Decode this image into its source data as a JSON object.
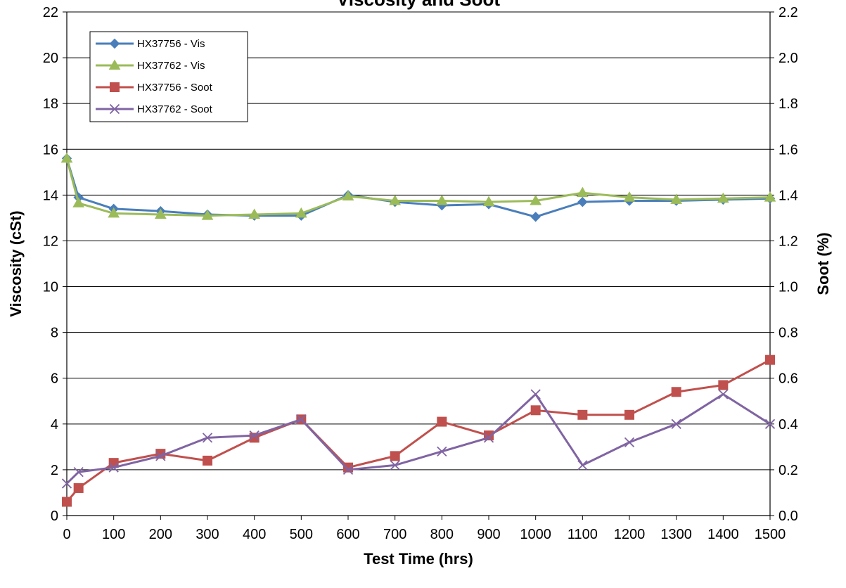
{
  "chart_data": {
    "type": "line",
    "title": "Viscosity and Soot",
    "xlabel": "Test Time (hrs)",
    "ylabel": "Viscosity (cSt)",
    "y2label": "Soot (%)",
    "xlim": [
      0,
      1500
    ],
    "ylim": [
      0,
      22
    ],
    "y2lim": [
      0.0,
      2.2
    ],
    "x_ticks": [
      "0",
      "100",
      "200",
      "300",
      "400",
      "500",
      "600",
      "700",
      "800",
      "900",
      "1000",
      "1100",
      "1200",
      "1300",
      "1400",
      "1500"
    ],
    "y_ticks": [
      "0",
      "2",
      "4",
      "6",
      "8",
      "10",
      "12",
      "14",
      "16",
      "18",
      "20",
      "22"
    ],
    "y2_ticks": [
      "0.0",
      "0.2",
      "0.4",
      "0.6",
      "0.8",
      "1.0",
      "1.2",
      "1.4",
      "1.6",
      "1.8",
      "2.0",
      "2.2"
    ],
    "grid": true,
    "legend_position": "top-left",
    "series": [
      {
        "name": "HX37756 - Vis",
        "axis": "left",
        "color": "#4a7ebb",
        "marker": "diamond",
        "x": [
          0,
          25,
          100,
          200,
          300,
          400,
          500,
          600,
          700,
          800,
          900,
          1000,
          1100,
          1200,
          1300,
          1400,
          1500
        ],
        "values": [
          15.6,
          13.9,
          13.4,
          13.3,
          13.15,
          13.1,
          13.1,
          14.0,
          13.7,
          13.55,
          13.6,
          13.05,
          13.7,
          13.75,
          13.75,
          13.8,
          13.85
        ]
      },
      {
        "name": "HX37762 - Vis",
        "axis": "left",
        "color": "#9bbb59",
        "marker": "triangle",
        "x": [
          0,
          25,
          100,
          200,
          300,
          400,
          500,
          600,
          700,
          800,
          900,
          1000,
          1100,
          1200,
          1300,
          1400,
          1500
        ],
        "values": [
          15.6,
          13.65,
          13.2,
          13.15,
          13.1,
          13.15,
          13.2,
          13.95,
          13.75,
          13.75,
          13.7,
          13.75,
          14.1,
          13.9,
          13.8,
          13.85,
          13.9
        ]
      },
      {
        "name": "HX37756 - Soot",
        "axis": "right",
        "color": "#c0504d",
        "marker": "square",
        "x": [
          0,
          25,
          100,
          200,
          300,
          400,
          500,
          600,
          700,
          800,
          900,
          1000,
          1100,
          1200,
          1300,
          1400,
          1500
        ],
        "values": [
          0.06,
          0.12,
          0.23,
          0.27,
          0.24,
          0.34,
          0.42,
          0.21,
          0.26,
          0.41,
          0.35,
          0.46,
          0.44,
          0.44,
          0.54,
          0.57,
          0.68
        ]
      },
      {
        "name": "HX37762 - Soot",
        "axis": "right",
        "color": "#8064a2",
        "marker": "x",
        "x": [
          0,
          25,
          100,
          200,
          300,
          400,
          500,
          600,
          700,
          800,
          900,
          1000,
          1100,
          1200,
          1300,
          1400,
          1500
        ],
        "values": [
          0.14,
          0.19,
          0.21,
          0.26,
          0.34,
          0.35,
          0.42,
          0.2,
          0.22,
          0.28,
          0.34,
          0.53,
          0.22,
          0.32,
          0.4,
          0.53,
          0.4
        ]
      }
    ]
  }
}
